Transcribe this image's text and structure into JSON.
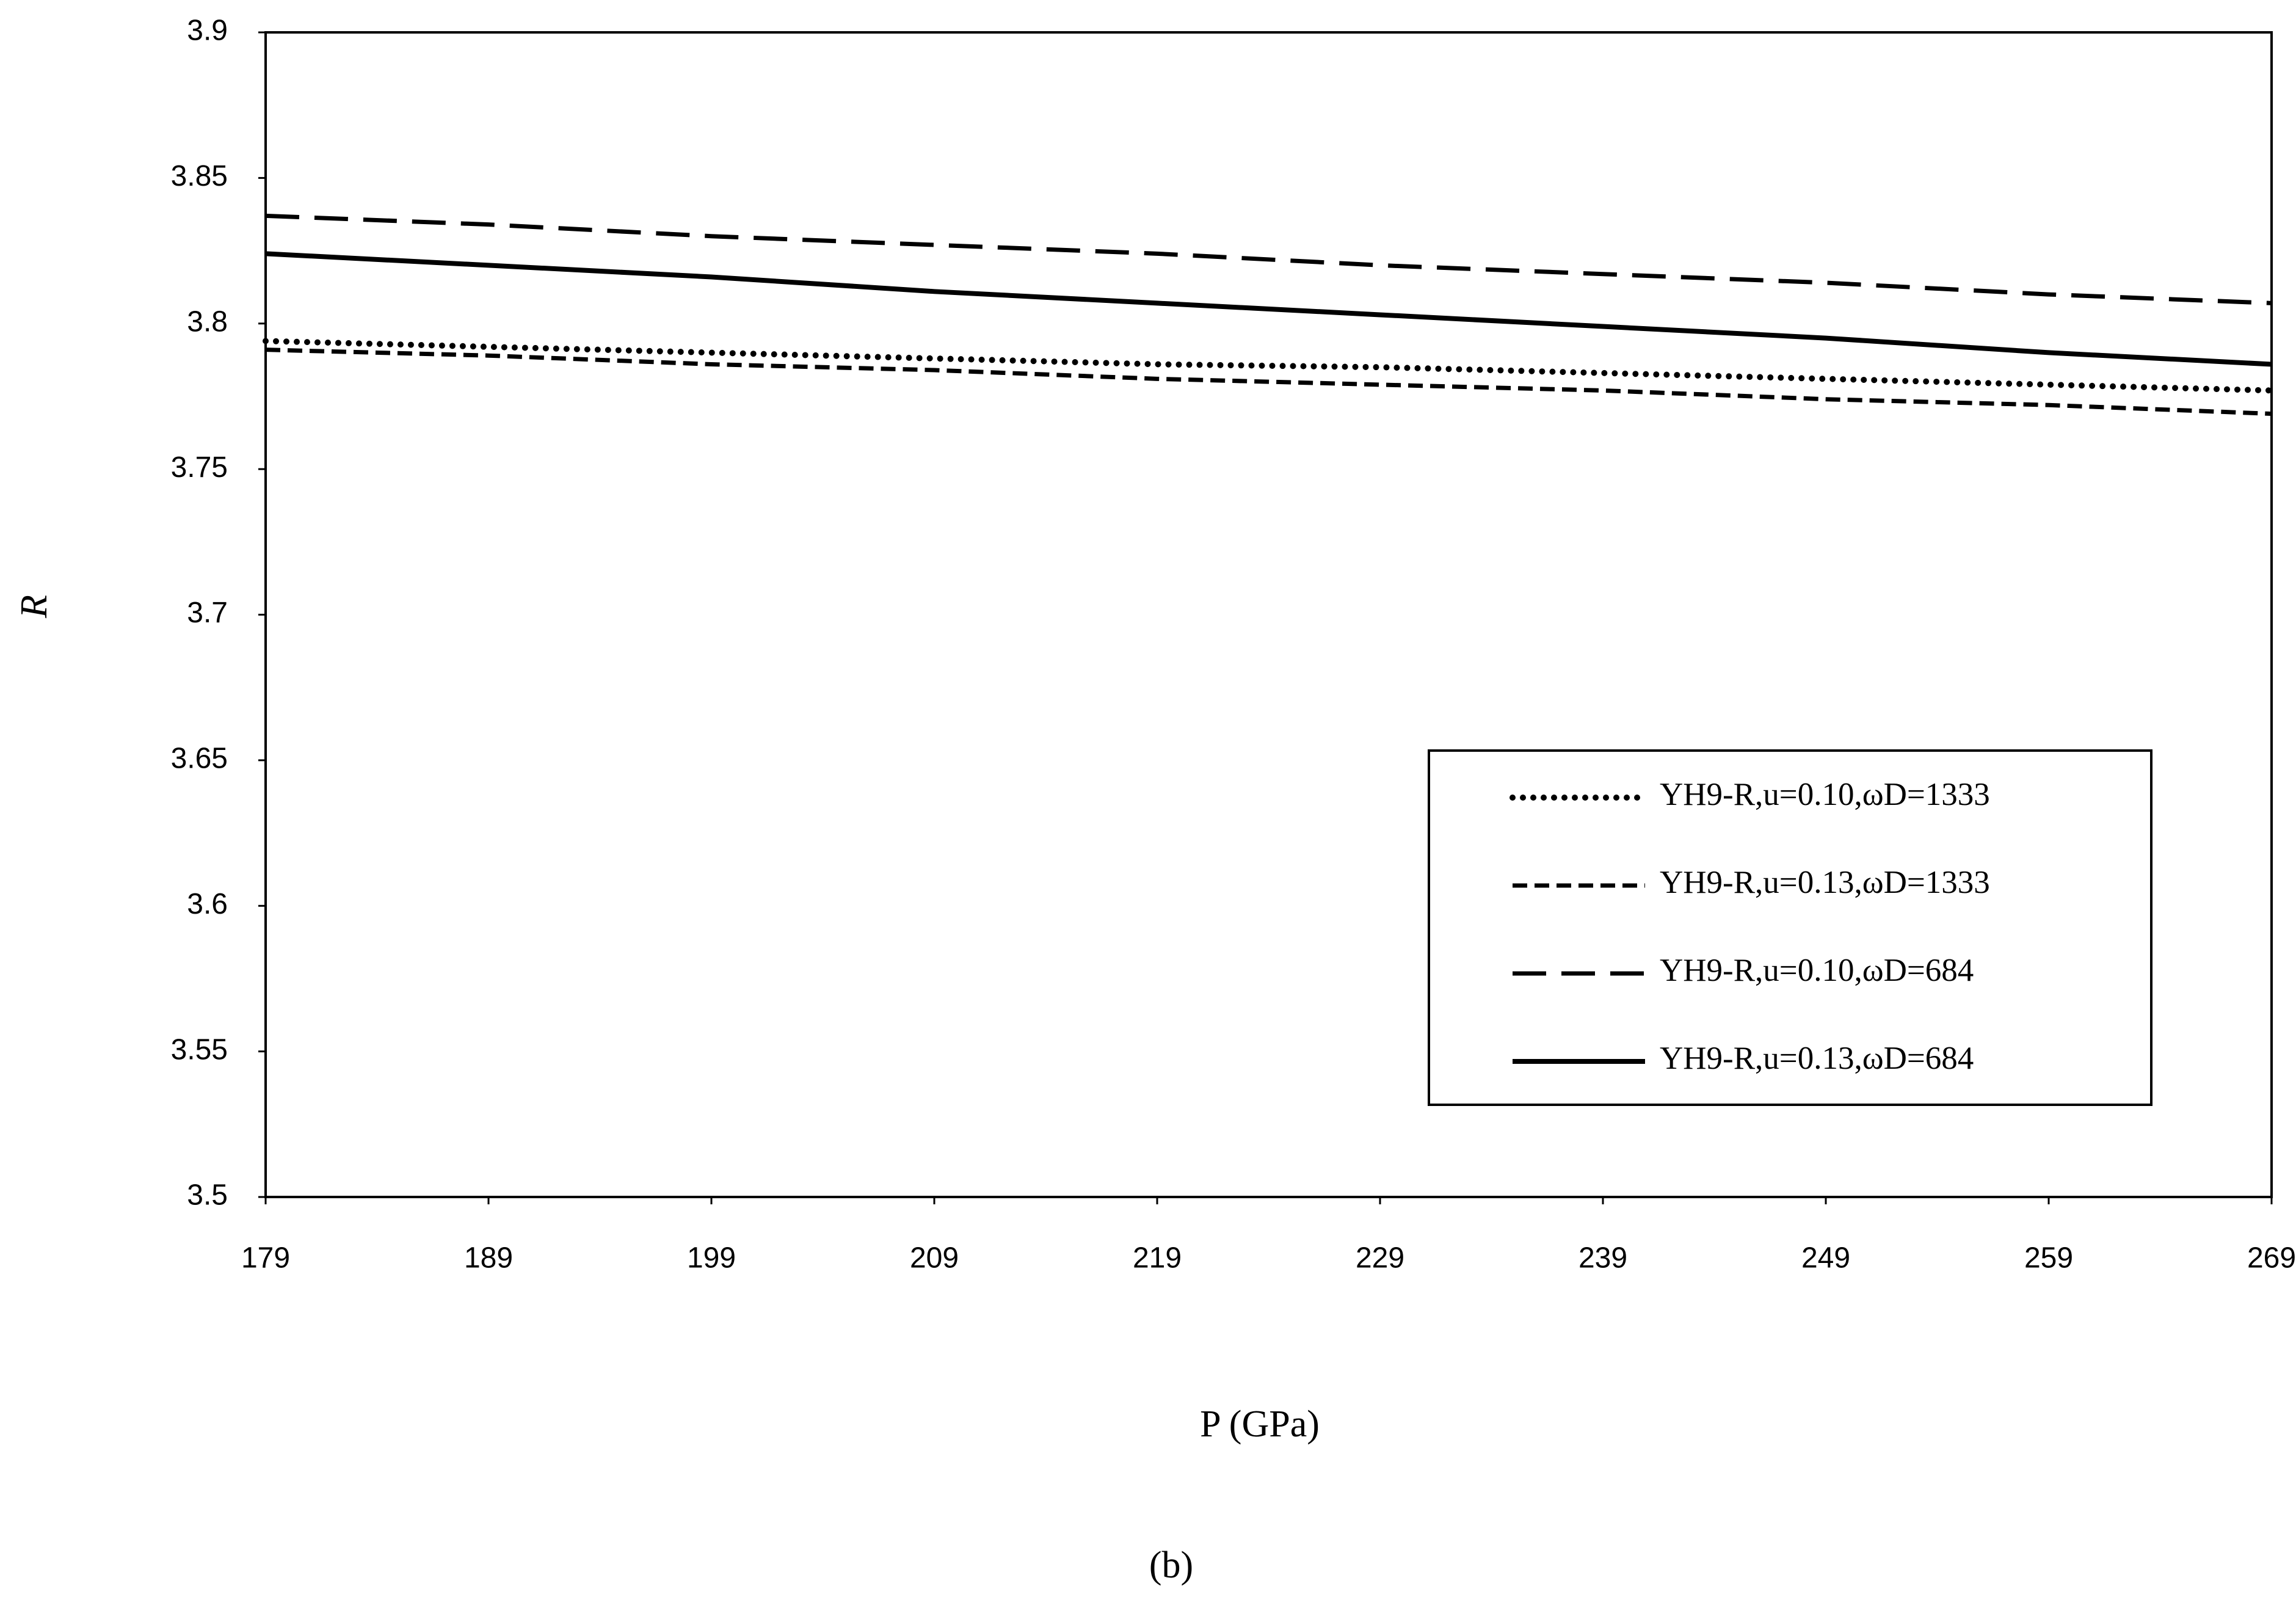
{
  "chart_data": {
    "type": "line",
    "x_label": "P (GPa)",
    "y_label": "R",
    "caption": "(b)",
    "x": [
      179,
      189,
      199,
      209,
      219,
      229,
      239,
      249,
      259,
      269
    ],
    "series": [
      {
        "name": "YH9-R,u=0.10,ωD=1333",
        "color": "#000000",
        "style": "dotted",
        "values": [
          3.794,
          3.792,
          3.79,
          3.788,
          3.786,
          3.785,
          3.783,
          3.781,
          3.779,
          3.777
        ]
      },
      {
        "name": "YH9-R,u=0.13,ωD=1333",
        "color": "#000000",
        "style": "dashed",
        "values": [
          3.791,
          3.789,
          3.786,
          3.784,
          3.781,
          3.779,
          3.777,
          3.774,
          3.772,
          3.769
        ]
      },
      {
        "name": "YH9-R,u=0.10,ωD=684",
        "color": "#000000",
        "style": "long-dashed",
        "values": [
          3.837,
          3.834,
          3.83,
          3.827,
          3.824,
          3.82,
          3.817,
          3.814,
          3.81,
          3.807
        ]
      },
      {
        "name": "YH9-R,u=0.13,ωD=684",
        "color": "#000000",
        "style": "solid",
        "values": [
          3.824,
          3.82,
          3.816,
          3.811,
          3.807,
          3.803,
          3.799,
          3.795,
          3.79,
          3.786
        ]
      }
    ],
    "xlim": [
      179,
      269
    ],
    "xticks": [
      179,
      189,
      199,
      209,
      219,
      229,
      239,
      249,
      259,
      269
    ],
    "ylim": [
      3.5,
      3.9
    ],
    "yticks": [
      3.5,
      3.55,
      3.6,
      3.65,
      3.7,
      3.75,
      3.8,
      3.85,
      3.9
    ],
    "grid": false
  }
}
